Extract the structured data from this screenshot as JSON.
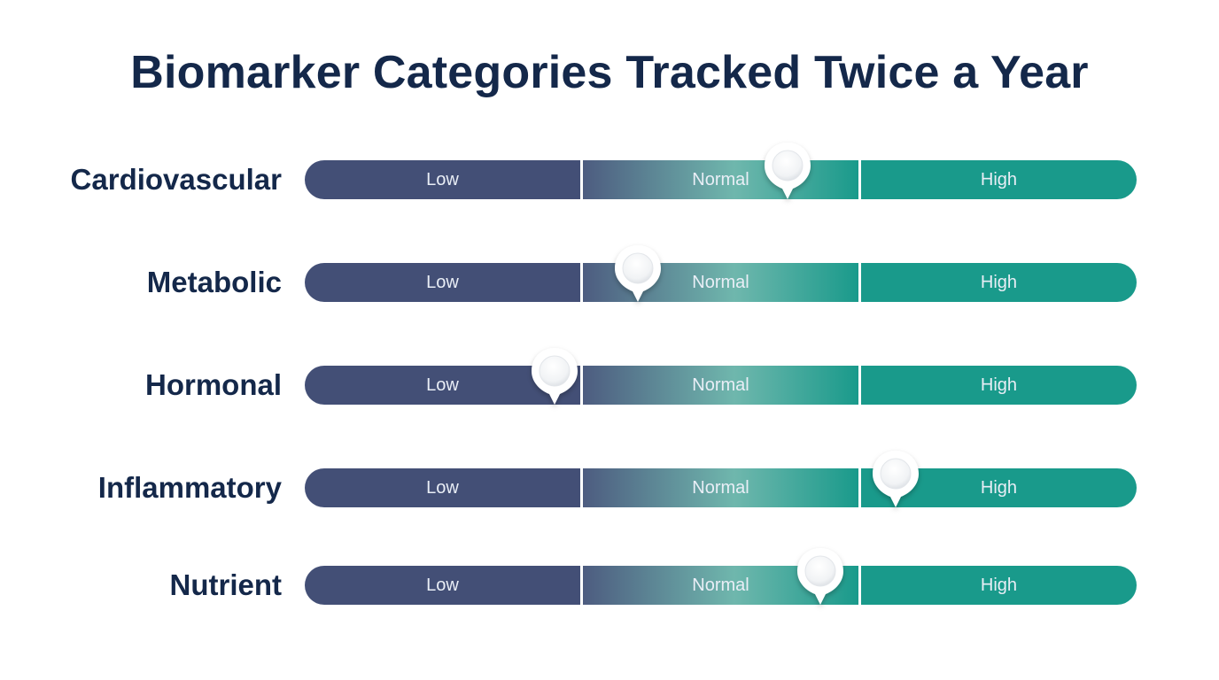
{
  "title": "Biomarker Categories Tracked Twice a Year",
  "colors": {
    "low": "#434f76",
    "normal_start": "#4d5c80",
    "normal_end": "#6fb7ad",
    "high": "#199a8b",
    "title": "#14284a"
  },
  "scale": {
    "low_label": "Low",
    "normal_label": "Normal",
    "high_label": "High"
  },
  "rows": [
    {
      "label": "Cardiovascular",
      "level": 0.58
    },
    {
      "label": "Metabolic",
      "level": 0.4
    },
    {
      "label": "Hormonal",
      "level": 0.3
    },
    {
      "label": "Inflammatory",
      "level": 0.71
    },
    {
      "label": "Nutrient",
      "level": 0.62
    }
  ]
}
